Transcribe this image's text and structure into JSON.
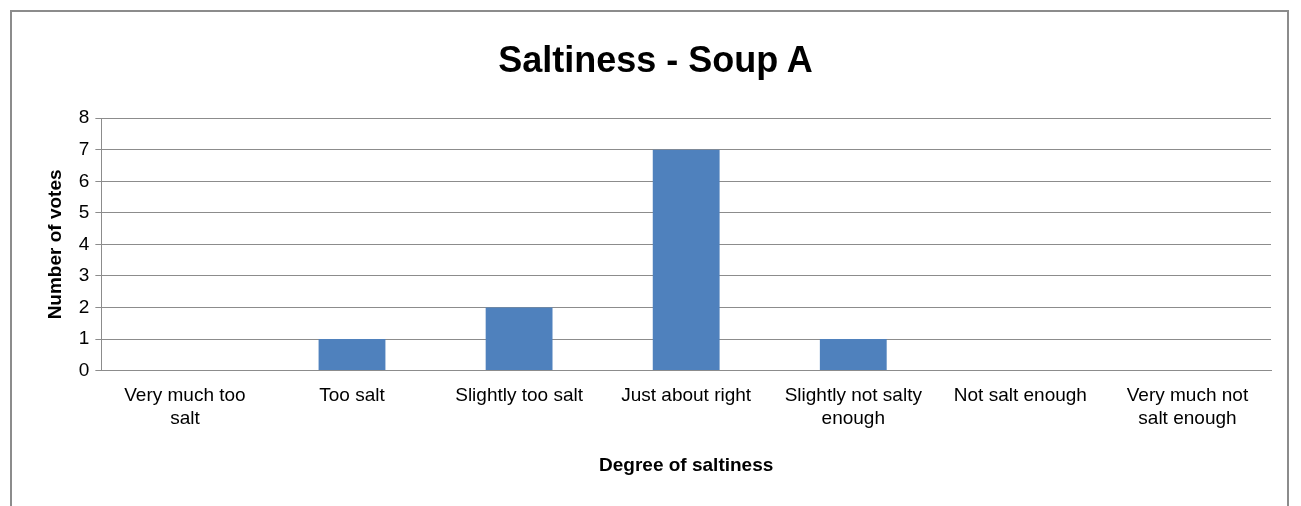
{
  "chart_data": {
    "type": "bar",
    "title": "Saltiness - Soup A",
    "xlabel": "Degree of saltiness",
    "ylabel": "Number of votes",
    "categories": [
      "Very much too salt",
      "Too salt",
      "Slightly too salt",
      "Just about right",
      "Slightly not salty enough",
      "Not salt enough",
      "Very much not salt enough"
    ],
    "values": [
      0,
      1,
      2,
      7,
      1,
      0,
      0
    ],
    "color": "#4f81bd",
    "ylim": [
      0,
      8
    ],
    "yticks": [
      0,
      1,
      2,
      3,
      4,
      5,
      6,
      7,
      8
    ],
    "grid": "y",
    "legend": false
  }
}
